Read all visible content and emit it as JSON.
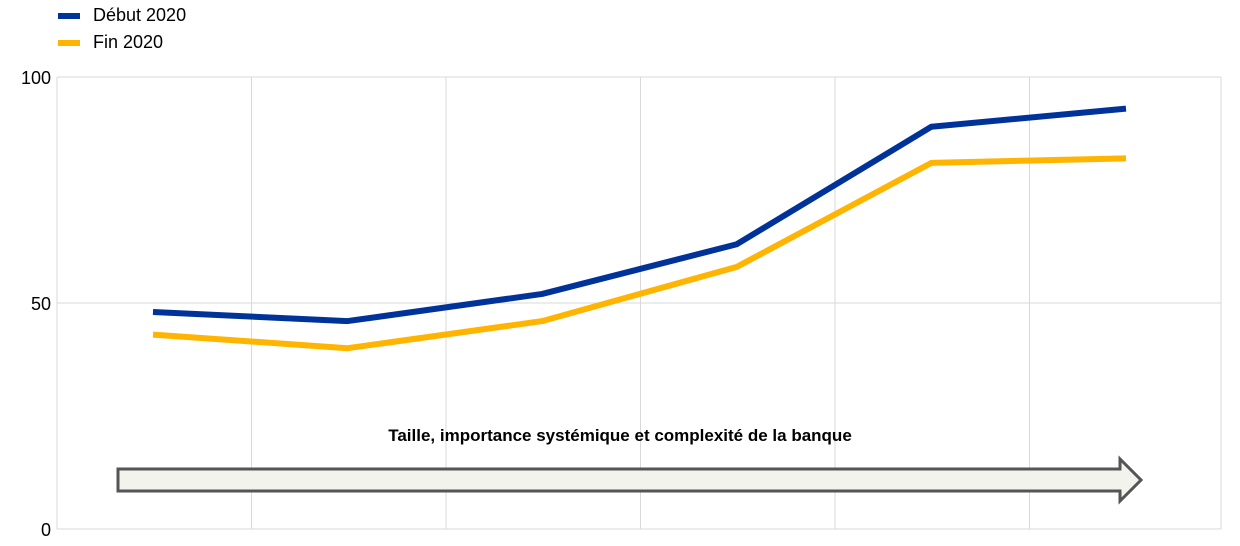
{
  "chart_data": {
    "type": "line",
    "title": "",
    "xlabel": "",
    "ylabel": "",
    "x": [
      1,
      2,
      3,
      4,
      5,
      6
    ],
    "ylim": [
      0,
      100
    ],
    "yticks": [
      {
        "value": 0,
        "label": "0"
      },
      {
        "value": 50,
        "label": "50"
      },
      {
        "value": 100,
        "label": "100"
      }
    ],
    "grid": "vertical and horizontal",
    "legend_position": "top-left",
    "series": [
      {
        "name": "Début 2020",
        "color": "#003399",
        "values": [
          48,
          46,
          52,
          63,
          89,
          93
        ]
      },
      {
        "name": "Fin 2020",
        "color": "#FFB400",
        "values": [
          43,
          40,
          46,
          58,
          81,
          82
        ]
      }
    ],
    "annotation": "Taille, importance systémique et complexité de la banque"
  }
}
